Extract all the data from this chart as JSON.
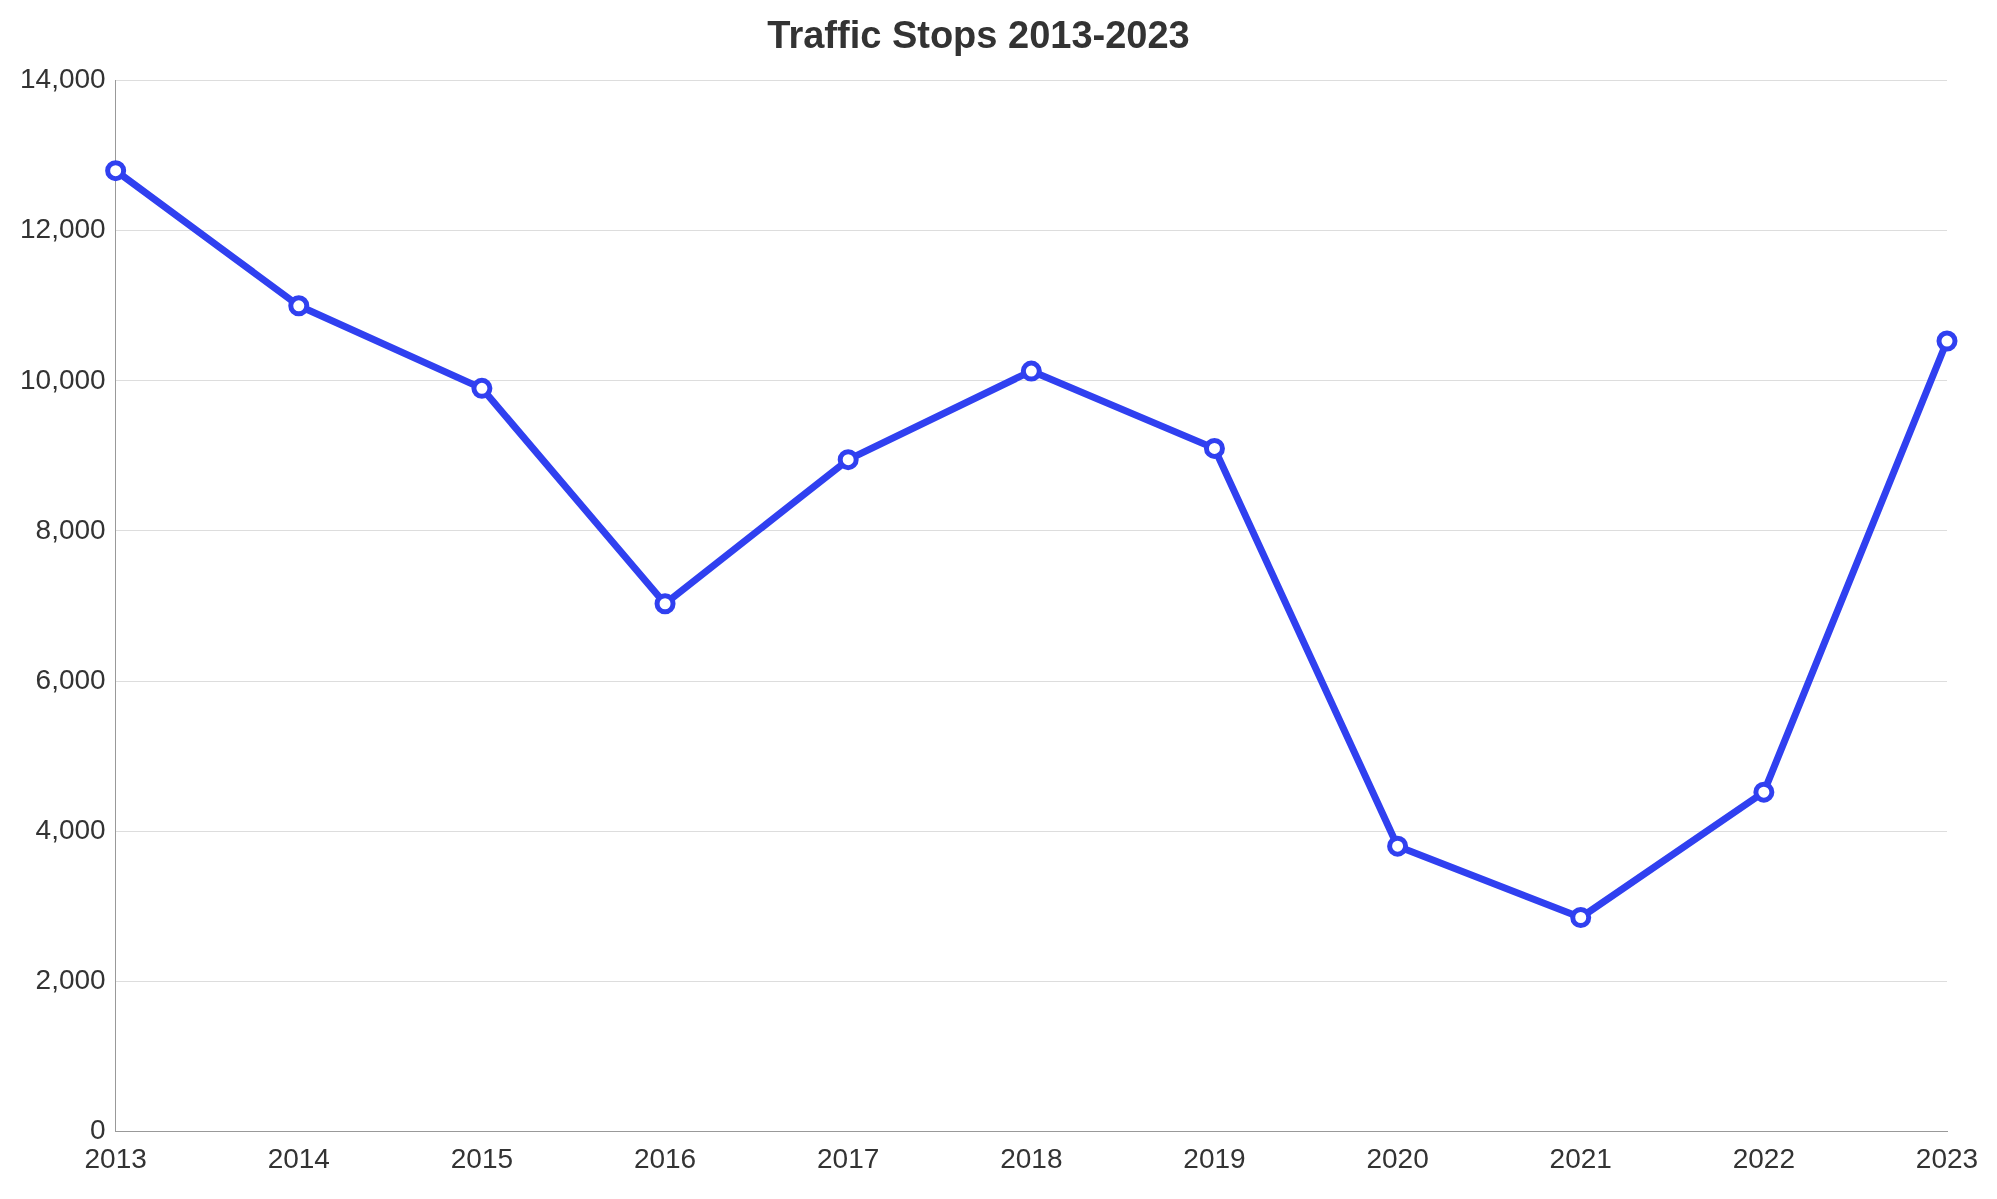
{
  "chart_data": {
    "type": "line",
    "title": "Traffic Stops 2013-2023",
    "categories": [
      "2013",
      "2014",
      "2015",
      "2016",
      "2017",
      "2018",
      "2019",
      "2020",
      "2021",
      "2022",
      "2023"
    ],
    "series": [
      {
        "color": "#3040f0",
        "values": [
          12800,
          11000,
          9900,
          7030,
          8950,
          10130,
          9100,
          3800,
          2850,
          4520,
          10530
        ]
      }
    ],
    "ylim": [
      0,
      14000
    ],
    "yticks": [
      {
        "value": 0,
        "label": "0"
      },
      {
        "value": 2000,
        "label": "2,000"
      },
      {
        "value": 4000,
        "label": "4,000"
      },
      {
        "value": 6000,
        "label": "6,000"
      },
      {
        "value": 8000,
        "label": "8,000"
      },
      {
        "value": 10000,
        "label": "10,000"
      },
      {
        "value": 12000,
        "label": "12,000"
      },
      {
        "value": 14000,
        "label": "14,000"
      }
    ],
    "grid": "y",
    "legend": false,
    "marker": "circle",
    "line_style": "solid"
  }
}
